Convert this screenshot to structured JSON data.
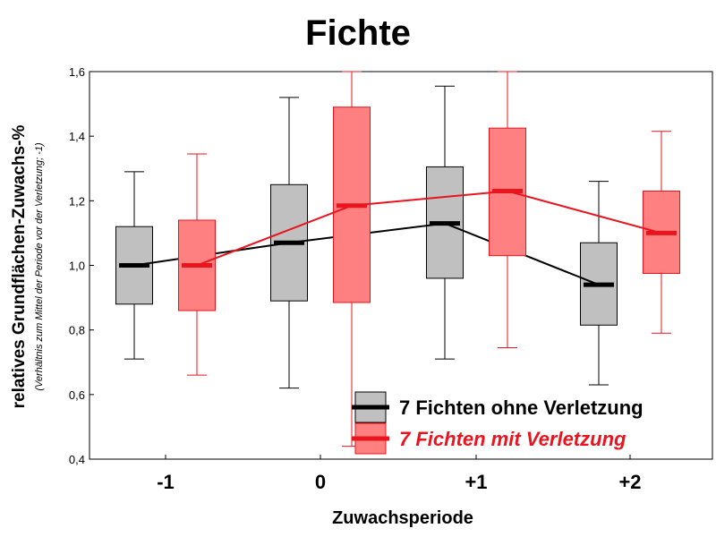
{
  "chart_data": {
    "type": "boxplot",
    "title": "Fichte",
    "xlabel": "Zuwachsperiode",
    "ylabel": "relatives Grundflächen-Zuwachs-%",
    "ylabel_sub": "(Verhältnis zum Mittel der Periode vor der Verletzung; -1)",
    "categories": [
      "-1",
      "0",
      "+1",
      "+2"
    ],
    "y_ticks": [
      "0,4",
      "0,6",
      "0,8",
      "1,0",
      "1,2",
      "1,4",
      "1,6"
    ],
    "ylim": [
      0.4,
      1.6
    ],
    "legend_position": "bottom-right",
    "series": [
      {
        "name": "7 Fichten ohne Verletzung",
        "box_color": "#c0c0c0",
        "line_color": "#000000",
        "median": [
          1.0,
          1.07,
          1.13,
          0.94
        ],
        "q1": [
          0.88,
          0.89,
          0.96,
          0.815
        ],
        "q3": [
          1.12,
          1.25,
          1.305,
          1.07
        ],
        "whisker_low": [
          0.71,
          0.62,
          0.71,
          0.63
        ],
        "whisker_high": [
          1.29,
          1.52,
          1.555,
          1.26
        ]
      },
      {
        "name": "7 Fichten mit Verletzung",
        "box_color": "#ff8080",
        "line_color": "#e8141e",
        "median": [
          1.0,
          1.185,
          1.23,
          1.1
        ],
        "q1": [
          0.86,
          0.885,
          1.03,
          0.975
        ],
        "q3": [
          1.14,
          1.49,
          1.425,
          1.23
        ],
        "whisker_low": [
          0.66,
          0.44,
          0.745,
          0.79
        ],
        "whisker_high": [
          1.345,
          1.6,
          1.6,
          1.415
        ]
      }
    ]
  }
}
